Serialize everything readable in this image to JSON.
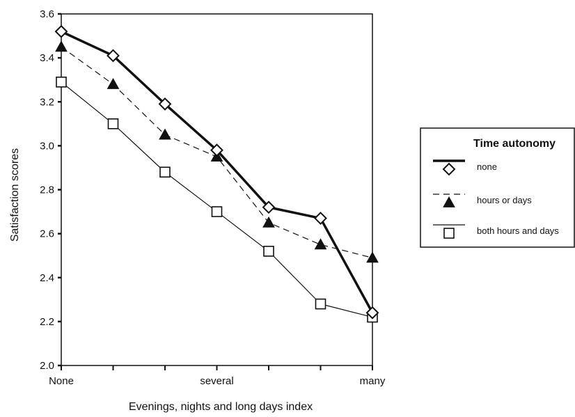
{
  "chart_data": {
    "type": "line",
    "xlabel": "Evenings, nights and long days index",
    "ylabel": "Satisfaction scores",
    "x_tick_labels": [
      "None",
      "several",
      "many"
    ],
    "x_tick_label_positions": [
      0,
      3,
      6
    ],
    "x_ticks": [
      0,
      1,
      2,
      3,
      4,
      5,
      6
    ],
    "xlim": [
      0,
      6
    ],
    "ylim": [
      2.0,
      3.6
    ],
    "y_ticks": [
      "2.0",
      "2.2",
      "2.4",
      "2.6",
      "2.8",
      "3.0",
      "3.2",
      "3.4",
      "3.6"
    ],
    "grid": false,
    "legend_position": "right",
    "legend_title": "Time autonomy",
    "series": [
      {
        "name": "none",
        "line_style": "thick-solid",
        "marker": "open-diamond",
        "x": [
          0,
          1,
          2,
          3,
          4,
          5,
          6
        ],
        "values": [
          3.52,
          3.41,
          3.19,
          2.98,
          2.72,
          2.67,
          2.24
        ]
      },
      {
        "name": "hours or days",
        "line_style": "dashed",
        "marker": "filled-triangle",
        "x": [
          0,
          1,
          2,
          3,
          4,
          5,
          6
        ],
        "values": [
          3.45,
          3.28,
          3.05,
          2.95,
          2.65,
          2.55,
          2.49
        ]
      },
      {
        "name": "both hours and days",
        "line_style": "thin-solid",
        "marker": "open-square",
        "x": [
          0,
          1,
          2,
          3,
          4,
          5,
          6
        ],
        "values": [
          3.29,
          3.1,
          2.88,
          2.7,
          2.52,
          2.28,
          2.22
        ]
      }
    ]
  }
}
